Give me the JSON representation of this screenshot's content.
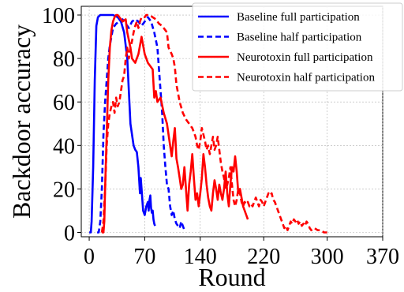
{
  "chart_data": {
    "type": "line",
    "title": "",
    "xlabel": "Round",
    "ylabel": "Backdoor accuracy",
    "xlim": [
      -10,
      370
    ],
    "ylim": [
      -2,
      104
    ],
    "xticks": [
      0,
      70,
      140,
      220,
      300,
      370
    ],
    "yticks": [
      0,
      20,
      40,
      60,
      80,
      100
    ],
    "grid": true,
    "legend_position": "top-right",
    "series": [
      {
        "name": "Baseline full participation",
        "color": "#0000ff",
        "dash": "solid",
        "points": [
          [
            0,
            0
          ],
          [
            2,
            0
          ],
          [
            3,
            5
          ],
          [
            5,
            30
          ],
          [
            7,
            70
          ],
          [
            9,
            95
          ],
          [
            11,
            99
          ],
          [
            14,
            100
          ],
          [
            20,
            100
          ],
          [
            30,
            100
          ],
          [
            36,
            99
          ],
          [
            40,
            97
          ],
          [
            44,
            92
          ],
          [
            48,
            80
          ],
          [
            50,
            65
          ],
          [
            52,
            50
          ],
          [
            54,
            45
          ],
          [
            56,
            40
          ],
          [
            58,
            38
          ],
          [
            60,
            37
          ],
          [
            62,
            30
          ],
          [
            64,
            18
          ],
          [
            65,
            25
          ],
          [
            66,
            20
          ],
          [
            68,
            10
          ],
          [
            70,
            8
          ],
          [
            72,
            12
          ],
          [
            74,
            14
          ],
          [
            75,
            10
          ],
          [
            76,
            15
          ],
          [
            77,
            17
          ],
          [
            78,
            11
          ],
          [
            79,
            9
          ],
          [
            80,
            10
          ],
          [
            81,
            6
          ],
          [
            82,
            4
          ],
          [
            83,
            3
          ]
        ]
      },
      {
        "name": "Baseline half participation",
        "color": "#0000ff",
        "dash": "dashed",
        "points": [
          [
            10,
            0
          ],
          [
            12,
            0
          ],
          [
            14,
            5
          ],
          [
            16,
            20
          ],
          [
            18,
            45
          ],
          [
            20,
            60
          ],
          [
            22,
            70
          ],
          [
            24,
            80
          ],
          [
            26,
            86
          ],
          [
            28,
            90
          ],
          [
            30,
            94
          ],
          [
            34,
            96
          ],
          [
            38,
            97
          ],
          [
            42,
            98
          ],
          [
            46,
            96
          ],
          [
            50,
            94
          ],
          [
            54,
            97
          ],
          [
            58,
            98
          ],
          [
            62,
            97
          ],
          [
            66,
            95
          ],
          [
            70,
            97
          ],
          [
            74,
            99
          ],
          [
            78,
            97
          ],
          [
            82,
            92
          ],
          [
            86,
            85
          ],
          [
            88,
            75
          ],
          [
            90,
            65
          ],
          [
            92,
            55
          ],
          [
            94,
            40
          ],
          [
            96,
            30
          ],
          [
            98,
            22
          ],
          [
            100,
            20
          ],
          [
            102,
            12
          ],
          [
            104,
            8
          ],
          [
            106,
            10
          ],
          [
            108,
            6
          ],
          [
            110,
            4
          ],
          [
            112,
            3
          ],
          [
            114,
            2
          ],
          [
            116,
            5
          ],
          [
            118,
            3
          ],
          [
            120,
            1
          ]
        ]
      },
      {
        "name": "Neurotoxin full participation",
        "color": "#ff0000",
        "dash": "solid",
        "points": [
          [
            16,
            0
          ],
          [
            18,
            0
          ],
          [
            19,
            5
          ],
          [
            20,
            20
          ],
          [
            22,
            45
          ],
          [
            24,
            70
          ],
          [
            26,
            85
          ],
          [
            28,
            93
          ],
          [
            30,
            97
          ],
          [
            32,
            99
          ],
          [
            34,
            100
          ],
          [
            36,
            100
          ],
          [
            38,
            99
          ],
          [
            42,
            97
          ],
          [
            46,
            98
          ],
          [
            48,
            92
          ],
          [
            52,
            85
          ],
          [
            54,
            80
          ],
          [
            58,
            78
          ],
          [
            62,
            82
          ],
          [
            66,
            90
          ],
          [
            70,
            82
          ],
          [
            74,
            78
          ],
          [
            80,
            75
          ],
          [
            82,
            62
          ],
          [
            84,
            65
          ],
          [
            86,
            60
          ],
          [
            90,
            62
          ],
          [
            94,
            55
          ],
          [
            98,
            50
          ],
          [
            100,
            45
          ],
          [
            104,
            35
          ],
          [
            106,
            42
          ],
          [
            108,
            48
          ],
          [
            110,
            34
          ],
          [
            112,
            30
          ],
          [
            114,
            25
          ],
          [
            116,
            20
          ],
          [
            118,
            22
          ],
          [
            120,
            30
          ],
          [
            122,
            20
          ],
          [
            124,
            10
          ],
          [
            126,
            22
          ],
          [
            128,
            28
          ],
          [
            130,
            36
          ],
          [
            132,
            25
          ],
          [
            134,
            15
          ],
          [
            136,
            18
          ],
          [
            138,
            12
          ],
          [
            140,
            18
          ],
          [
            142,
            25
          ],
          [
            144,
            36
          ],
          [
            146,
            30
          ],
          [
            148,
            22
          ],
          [
            150,
            16
          ],
          [
            152,
            12
          ],
          [
            154,
            10
          ],
          [
            156,
            18
          ],
          [
            158,
            24
          ],
          [
            160,
            20
          ],
          [
            162,
            15
          ],
          [
            164,
            22
          ],
          [
            166,
            18
          ],
          [
            168,
            15
          ],
          [
            170,
            20
          ],
          [
            172,
            28
          ],
          [
            174,
            18
          ],
          [
            176,
            12
          ],
          [
            178,
            22
          ],
          [
            180,
            30
          ],
          [
            182,
            28
          ],
          [
            184,
            35
          ],
          [
            186,
            28
          ],
          [
            188,
            18
          ],
          [
            190,
            20
          ],
          [
            192,
            16
          ],
          [
            194,
            12
          ],
          [
            196,
            10
          ],
          [
            198,
            8
          ],
          [
            200,
            6
          ]
        ]
      },
      {
        "name": "Neurotoxin half participation",
        "color": "#ff0000",
        "dash": "dashed",
        "points": [
          [
            16,
            0
          ],
          [
            18,
            5
          ],
          [
            20,
            20
          ],
          [
            22,
            40
          ],
          [
            24,
            50
          ],
          [
            26,
            55
          ],
          [
            28,
            58
          ],
          [
            30,
            60
          ],
          [
            32,
            55
          ],
          [
            34,
            62
          ],
          [
            36,
            58
          ],
          [
            38,
            60
          ],
          [
            40,
            65
          ],
          [
            42,
            70
          ],
          [
            44,
            72
          ],
          [
            46,
            80
          ],
          [
            48,
            85
          ],
          [
            50,
            80
          ],
          [
            52,
            85
          ],
          [
            54,
            88
          ],
          [
            56,
            92
          ],
          [
            58,
            95
          ],
          [
            60,
            97
          ],
          [
            62,
            94
          ],
          [
            64,
            97
          ],
          [
            66,
            99
          ],
          [
            68,
            99
          ],
          [
            70,
            99
          ],
          [
            72,
            100
          ],
          [
            76,
            100
          ],
          [
            80,
            99
          ],
          [
            84,
            98
          ],
          [
            88,
            96
          ],
          [
            92,
            95
          ],
          [
            96,
            93
          ],
          [
            98,
            92
          ],
          [
            100,
            85
          ],
          [
            104,
            82
          ],
          [
            106,
            80
          ],
          [
            108,
            76
          ],
          [
            110,
            68
          ],
          [
            114,
            60
          ],
          [
            118,
            55
          ],
          [
            122,
            52
          ],
          [
            126,
            50
          ],
          [
            130,
            48
          ],
          [
            134,
            44
          ],
          [
            136,
            40
          ],
          [
            138,
            38
          ],
          [
            140,
            42
          ],
          [
            142,
            48
          ],
          [
            144,
            45
          ],
          [
            146,
            42
          ],
          [
            148,
            38
          ],
          [
            150,
            40
          ],
          [
            152,
            36
          ],
          [
            154,
            40
          ],
          [
            156,
            44
          ],
          [
            158,
            38
          ],
          [
            160,
            40
          ],
          [
            162,
            44
          ],
          [
            164,
            38
          ],
          [
            166,
            32
          ],
          [
            168,
            28
          ],
          [
            170,
            25
          ],
          [
            172,
            20
          ],
          [
            174,
            22
          ],
          [
            176,
            25
          ],
          [
            178,
            30
          ],
          [
            180,
            22
          ],
          [
            182,
            15
          ],
          [
            184,
            12
          ],
          [
            186,
            15
          ],
          [
            188,
            20
          ],
          [
            190,
            18
          ],
          [
            192,
            14
          ],
          [
            194,
            12
          ],
          [
            196,
            14
          ],
          [
            198,
            13
          ],
          [
            200,
            14
          ],
          [
            202,
            12
          ],
          [
            204,
            13
          ],
          [
            206,
            12
          ],
          [
            208,
            14
          ],
          [
            210,
            16
          ],
          [
            212,
            14
          ],
          [
            214,
            12
          ],
          [
            216,
            15
          ],
          [
            218,
            14
          ],
          [
            220,
            12
          ],
          [
            222,
            14
          ],
          [
            224,
            16
          ],
          [
            226,
            18
          ],
          [
            228,
            17
          ],
          [
            230,
            18
          ],
          [
            232,
            15
          ],
          [
            234,
            14
          ],
          [
            236,
            12
          ],
          [
            238,
            10
          ],
          [
            240,
            8
          ],
          [
            242,
            6
          ],
          [
            244,
            4
          ],
          [
            246,
            2
          ],
          [
            248,
            3
          ],
          [
            250,
            1
          ],
          [
            252,
            3
          ],
          [
            254,
            5
          ],
          [
            256,
            4
          ],
          [
            258,
            6
          ],
          [
            260,
            5
          ],
          [
            262,
            6
          ],
          [
            264,
            4
          ],
          [
            266,
            5
          ],
          [
            268,
            3
          ],
          [
            270,
            4
          ],
          [
            272,
            3
          ],
          [
            274,
            5
          ],
          [
            276,
            4
          ],
          [
            278,
            2
          ],
          [
            280,
            1
          ],
          [
            284,
            2
          ],
          [
            288,
            1
          ],
          [
            292,
            1
          ],
          [
            296,
            0
          ],
          [
            300,
            0
          ]
        ]
      }
    ]
  }
}
